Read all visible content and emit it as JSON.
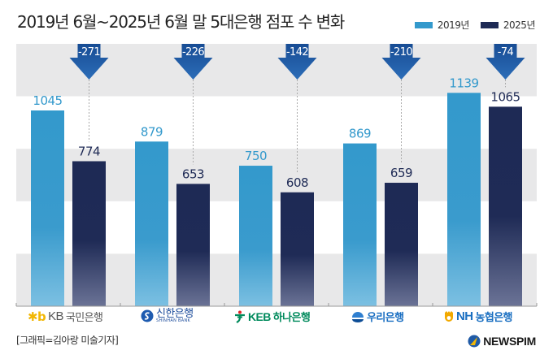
{
  "chart_data": {
    "type": "bar",
    "title": "2019년 6월~2025년 6월 말 5대은행 점포 수 변화",
    "categories": [
      "KB국민은행",
      "신한은행",
      "KEB 하나은행",
      "우리은행",
      "NH농협은행"
    ],
    "series": [
      {
        "name": "2019년",
        "color": "#3399cc",
        "values": [
          1045,
          879,
          750,
          869,
          1139
        ]
      },
      {
        "name": "2025년",
        "color": "#1e2a55",
        "values": [
          774,
          653,
          608,
          659,
          1065
        ]
      }
    ],
    "changes": [
      "-271",
      "-226",
      "-142",
      "-210",
      "-74"
    ],
    "change_color": "#1f5aa6",
    "xlabel": "",
    "ylabel": "",
    "ylim": [
      0,
      1300
    ],
    "grid": "alternating bands",
    "legend_position": "top-right"
  },
  "logos": {
    "kb": {
      "mark": "✱b",
      "en": "KB",
      "ko": "국민은행"
    },
    "shinhan": {
      "ko": "신한은행",
      "en": "SHINHAN BANK"
    },
    "hana": {
      "en": "KEB",
      "ko": "하나은행"
    },
    "woori": {
      "ko": "우리은행"
    },
    "nh": {
      "en": "NH",
      "ko": "농협은행"
    }
  },
  "credit": "[그래픽=김아랑 미술기자]",
  "brand": "NEWSPIM"
}
